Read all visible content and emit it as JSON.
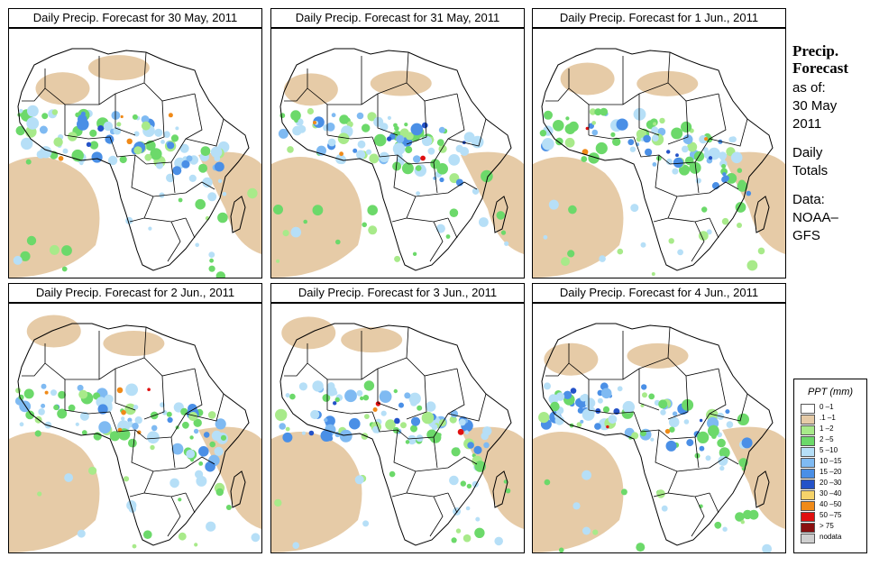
{
  "panels": [
    {
      "title": "Daily Precip. Forecast for  30 May, 2011"
    },
    {
      "title": "Daily Precip. Forecast for  31 May, 2011"
    },
    {
      "title": "Daily Precip. Forecast for  1 Jun., 2011"
    },
    {
      "title": "Daily Precip. Forecast for  2 Jun., 2011"
    },
    {
      "title": "Daily Precip. Forecast for  3 Jun., 2011"
    },
    {
      "title": "Daily Precip. Forecast for  4 Jun., 2011"
    }
  ],
  "side": {
    "title1": "Precip.",
    "title2": "Forecast",
    "asof": "as of:",
    "date1": "30 May",
    "date2": "2011",
    "daily1": "Daily",
    "daily2": "Totals",
    "data1": "Data:",
    "data2": "NOAA–",
    "data3": "GFS"
  },
  "legend": {
    "title": "PPT (mm)",
    "items": [
      {
        "label": "0 –1",
        "color": "#ffffff"
      },
      {
        "label": ".1 –1",
        "color": "#e6cba7"
      },
      {
        "label": "1 –2",
        "color": "#a8ea8a"
      },
      {
        "label": "2 –5",
        "color": "#6cd96a"
      },
      {
        "label": "5 –10",
        "color": "#b6dff7"
      },
      {
        "label": "10 –15",
        "color": "#7fbaf2"
      },
      {
        "label": "15 –20",
        "color": "#4a8fe6"
      },
      {
        "label": "20 –30",
        "color": "#2452c8"
      },
      {
        "label": "30 –40",
        "color": "#f5d36a"
      },
      {
        "label": "40 –50",
        "color": "#f08a18"
      },
      {
        "label": "50 –75",
        "color": "#e01010"
      },
      {
        "label": "> 75",
        "color": "#8a1010"
      },
      {
        "label": "nodata",
        "color": "#cfcfcf"
      }
    ]
  }
}
